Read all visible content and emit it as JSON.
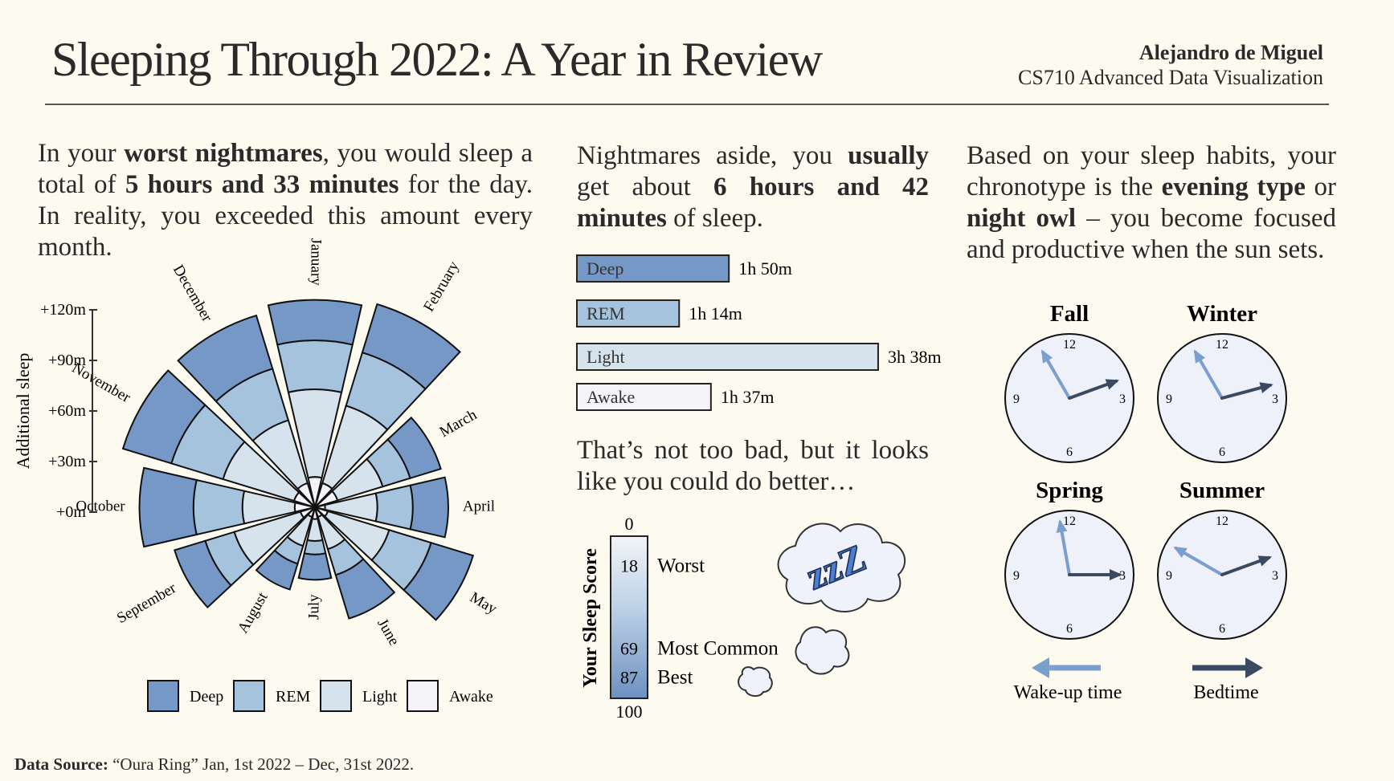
{
  "header": {
    "title": "Sleeping Through 2022: A Year in Review",
    "author": "Alejandro de Miguel",
    "course": "CS710 Advanced Data Visualization"
  },
  "paragraphs": {
    "p1": [
      {
        "t": "In your "
      },
      {
        "t": "worst nightmares",
        "b": true
      },
      {
        "t": ", you would sleep a total of "
      },
      {
        "t": "5 hours and 33 minutes",
        "b": true
      },
      {
        "t": " for the day. In reality, you exceeded this amount every month."
      }
    ],
    "p2": [
      {
        "t": "Nightmares aside, you "
      },
      {
        "t": "usually",
        "b": true
      },
      {
        "t": " get about "
      },
      {
        "t": "6 hours and 42 minutes",
        "b": true
      },
      {
        "t": " of sleep."
      }
    ],
    "p3": [
      {
        "t": "Based on your sleep habits, your chronotype is the "
      },
      {
        "t": "evening type",
        "b": true
      },
      {
        "t": " or "
      },
      {
        "t": "night owl",
        "b": true
      },
      {
        "t": " – you become focused and productive when the sun sets."
      }
    ],
    "p4": [
      {
        "t": "That’s not too bad, but it looks like you could do better…"
      }
    ]
  },
  "colors": {
    "deep": "#7598c6",
    "rem": "#a6c3de",
    "light": "#d6e3ec",
    "awake": "#f5f5f9",
    "wake_arrow": "#7b9fcc",
    "bed_arrow": "#3b4a63",
    "clock_face": "#eef0fa"
  },
  "chart_data": [
    {
      "type": "radial-stacked-bar",
      "ylabel": "Additional sleep",
      "ticks": [
        "+0m",
        "+30m",
        "+60m",
        "+90m",
        "+120m"
      ],
      "tick_values": [
        0,
        30,
        60,
        90,
        120
      ],
      "rlim": [
        0,
        120
      ],
      "categories": [
        "January",
        "February",
        "March",
        "April",
        "May",
        "June",
        "July",
        "August",
        "September",
        "October",
        "November",
        "December"
      ],
      "series": [
        {
          "name": "Awake",
          "values": [
            18,
            15,
            14,
            6,
            8,
            6,
            7,
            6,
            9,
            12,
            13,
            15
          ]
        },
        {
          "name": "Light",
          "values": [
            52,
            48,
            28,
            31,
            38,
            20,
            13,
            18,
            41,
            31,
            44,
            39
          ]
        },
        {
          "name": "REM",
          "values": [
            29,
            33,
            17,
            21,
            26,
            16,
            8,
            11,
            18,
            29,
            32,
            32
          ]
        },
        {
          "name": "Deep",
          "values": [
            24,
            30,
            19,
            21,
            26,
            27,
            15,
            16,
            19,
            32,
            30,
            33
          ]
        }
      ],
      "legend": [
        "Deep",
        "REM",
        "Light",
        "Awake"
      ],
      "legend_position": "bottom"
    },
    {
      "type": "bar",
      "orientation": "horizontal",
      "categories": [
        "Deep",
        "REM",
        "Light",
        "Awake"
      ],
      "values_min": [
        110,
        74,
        218,
        97
      ],
      "labels": [
        "1h 50m",
        "1h 14m",
        "3h 38m",
        "1h 37m"
      ]
    },
    {
      "type": "scale",
      "ylabel": "Your Sleep Score",
      "range": [
        0,
        100
      ],
      "range_labels": [
        "0",
        "100"
      ],
      "markers": [
        {
          "value": 18,
          "label": "Worst"
        },
        {
          "value": 69,
          "label": "Most Common"
        },
        {
          "value": 87,
          "label": "Best"
        }
      ]
    },
    {
      "type": "clock",
      "clocks": [
        {
          "season": "Fall",
          "wake": "11:00",
          "bed": "2:20"
        },
        {
          "season": "Winter",
          "wake": "11:00",
          "bed": "2:30"
        },
        {
          "season": "Spring",
          "wake": "11:40",
          "bed": "3:00"
        },
        {
          "season": "Summer",
          "wake": "10:00",
          "bed": "2:20"
        }
      ],
      "face_labels": [
        "12",
        "3",
        "6",
        "9"
      ],
      "legend": {
        "wake": "Wake-up time",
        "bed": "Bedtime"
      }
    }
  ],
  "footer": {
    "label": "Data Source:",
    "text": "“Oura Ring” Jan, 1st 2022 – Dec, 31st 2022."
  }
}
